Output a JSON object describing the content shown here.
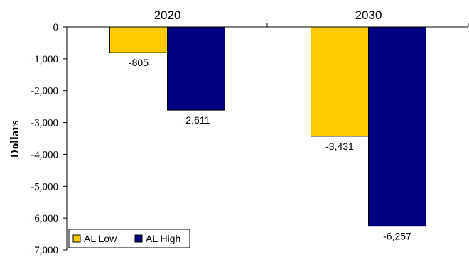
{
  "chart_data": {
    "type": "bar",
    "title": "",
    "xlabel": "",
    "ylabel": "Dollars",
    "categories": [
      "2020",
      "2030"
    ],
    "series": [
      {
        "name": "AL Low",
        "values": [
          -805,
          -3431
        ],
        "labels": [
          "-805",
          "-3,431"
        ],
        "color": "#FFCC00"
      },
      {
        "name": "AL High",
        "values": [
          -2611,
          -6257
        ],
        "labels": [
          "-2,611",
          "-6,257"
        ],
        "color": "#000080"
      }
    ],
    "ylim": [
      -7000,
      0
    ],
    "yticks": [
      {
        "value": 0,
        "label": "0"
      },
      {
        "value": -1000,
        "label": "-1,000"
      },
      {
        "value": -2000,
        "label": "-2,000"
      },
      {
        "value": -3000,
        "label": "-3,000"
      },
      {
        "value": -4000,
        "label": "-4,000"
      },
      {
        "value": -5000,
        "label": "-5,000"
      },
      {
        "value": -6000,
        "label": "-6,000"
      },
      {
        "value": -7000,
        "label": "-7,000"
      }
    ],
    "category_labels_position": "top",
    "grid": false,
    "legend": "bottom-left"
  }
}
